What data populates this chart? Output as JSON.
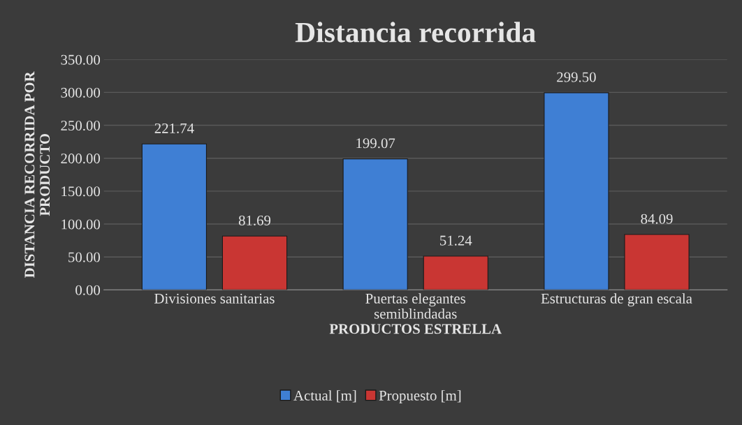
{
  "chart_data": {
    "type": "bar",
    "title": "Distancia recorrida",
    "xlabel": "PRODUCTOS ESTRELLA",
    "ylabel": "DISTANCIA RECORRIDA POR\nPRODUCTO",
    "categories": [
      "Divisiones sanitarias",
      "Puertas elegantes\nsemiblindadas",
      "Estructuras de gran escala"
    ],
    "series": [
      {
        "name": "Actual [m]",
        "color": "#3f7fd4",
        "values": [
          221.74,
          199.07,
          299.5
        ],
        "value_labels": [
          "221.74",
          "199.07",
          "299.50"
        ]
      },
      {
        "name": "Propuesto [m]",
        "color": "#c93633",
        "values": [
          81.69,
          51.24,
          84.09
        ],
        "value_labels": [
          "81.69",
          "51.24",
          "84.09"
        ]
      }
    ],
    "ylim": [
      0,
      350
    ],
    "yticks": [
      {
        "value": 0,
        "label": "0.00"
      },
      {
        "value": 50,
        "label": "50.00"
      },
      {
        "value": 100,
        "label": "100.00"
      },
      {
        "value": 150,
        "label": "150.00"
      },
      {
        "value": 200,
        "label": "200.00"
      },
      {
        "value": 250,
        "label": "250.00"
      },
      {
        "value": 300,
        "label": "300.00"
      },
      {
        "value": 350,
        "label": "350.00"
      }
    ],
    "grid": "y",
    "legend": "bottom"
  }
}
